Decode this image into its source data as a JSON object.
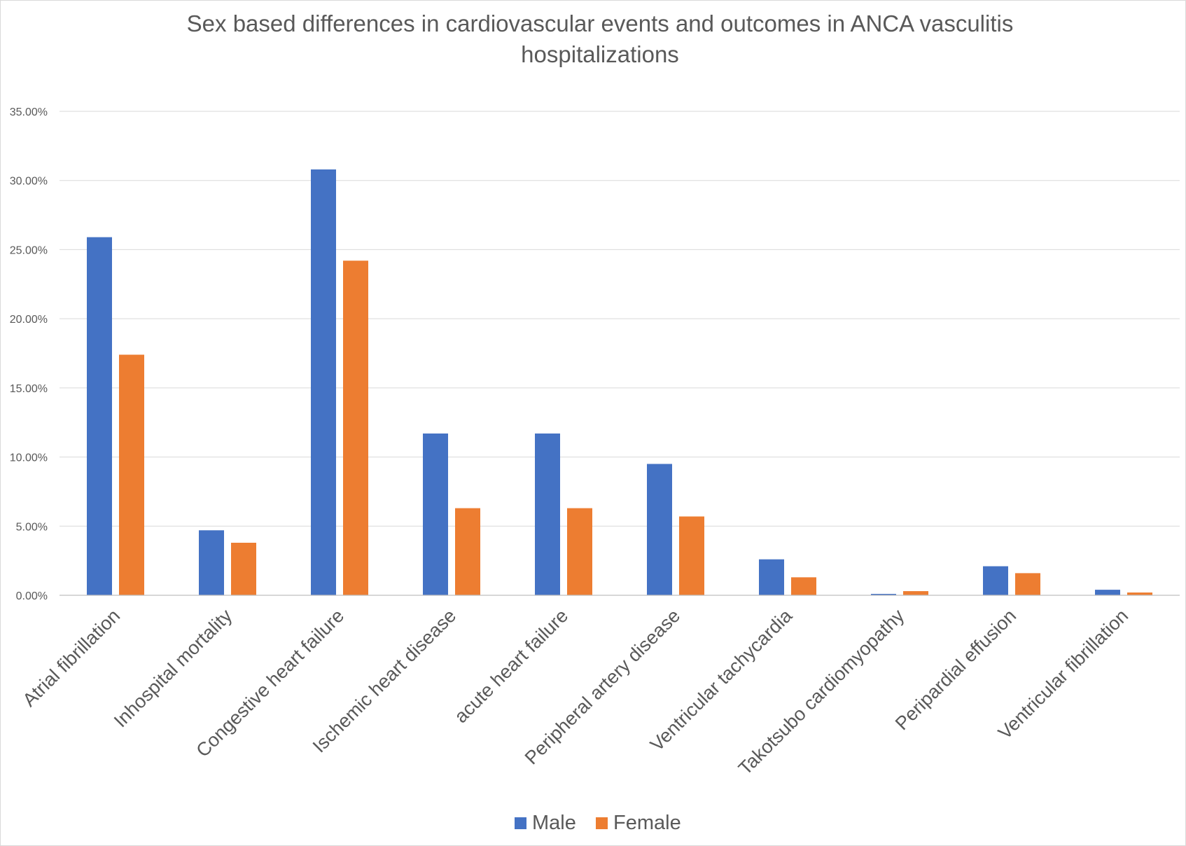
{
  "chart_data": {
    "type": "bar",
    "title_lines": [
      "Sex based differences in cardiovascular events and outcomes in ANCA vasculitis",
      "hospitalizations"
    ],
    "categories": [
      "Atrial fibrillation",
      "Inhospital mortality",
      "Congestive heart failure",
      "Ischemic heart disease",
      "acute heart failure",
      "Peripheral artery disease",
      "Ventricular tachycardia",
      "Takotsubo cardiomyopathy",
      "Peripardial effusion",
      "Ventricular fibrillation"
    ],
    "series": [
      {
        "name": "Male",
        "color": "#4472C4",
        "values": [
          25.9,
          4.7,
          30.8,
          11.7,
          11.7,
          9.5,
          2.6,
          0.1,
          2.1,
          0.4
        ]
      },
      {
        "name": "Female",
        "color": "#ED7D31",
        "values": [
          17.4,
          3.8,
          24.2,
          6.3,
          6.3,
          5.7,
          1.3,
          0.3,
          1.6,
          0.2
        ]
      }
    ],
    "ylim": [
      0,
      35
    ],
    "yticks": [
      "0.00%",
      "5.00%",
      "10.00%",
      "15.00%",
      "20.00%",
      "25.00%",
      "30.00%",
      "35.00%"
    ],
    "grid": true,
    "legend_position": "bottom",
    "xlabel": "",
    "ylabel": ""
  }
}
